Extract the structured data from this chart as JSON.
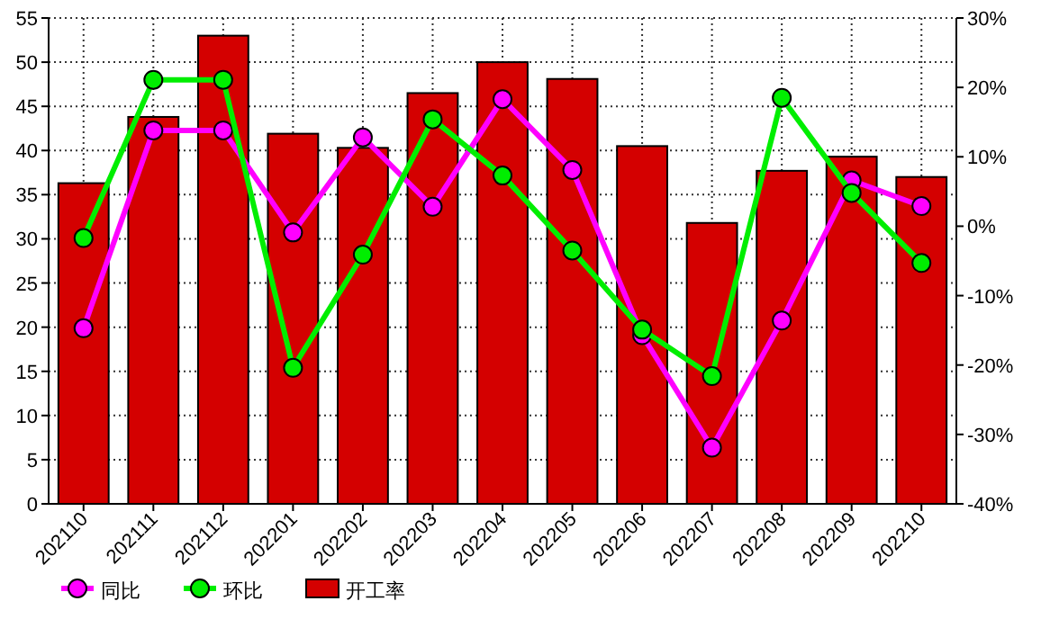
{
  "chart_data": {
    "type": "bar",
    "categories": [
      "202110",
      "202111",
      "202112",
      "202201",
      "202202",
      "202203",
      "202204",
      "202205",
      "202206",
      "202207",
      "202208",
      "202209",
      "202210"
    ],
    "series": [
      {
        "name": "同比",
        "type": "line",
        "axis": "y2",
        "color": "#ff00ff",
        "values": [
          -14.7,
          13.8,
          13.8,
          -0.9,
          12.8,
          2.8,
          18.3,
          8.1,
          -15.7,
          -31.9,
          -13.6,
          6.6,
          2.9
        ]
      },
      {
        "name": "环比",
        "type": "line",
        "axis": "y2",
        "color": "#00ee00",
        "values": [
          -1.7,
          21.1,
          21.1,
          -20.4,
          -4.1,
          15.4,
          7.3,
          -3.5,
          -14.9,
          -21.6,
          18.5,
          4.8,
          -5.3
        ]
      },
      {
        "name": "开工率",
        "color": "#d40000",
        "values": [
          36.3,
          43.8,
          53.0,
          41.9,
          40.3,
          46.5,
          50.0,
          48.1,
          40.5,
          31.8,
          37.7,
          39.3,
          37.0
        ]
      }
    ],
    "ylim": [
      0,
      55
    ],
    "yticks": [
      0,
      5,
      10,
      15,
      20,
      25,
      30,
      35,
      40,
      45,
      50,
      55
    ],
    "y2lim": [
      -40,
      30
    ],
    "y2ticks": [
      {
        "value": -40,
        "label": "-40%"
      },
      {
        "value": -30,
        "label": "-30%"
      },
      {
        "value": -20,
        "label": "-20%"
      },
      {
        "value": -10,
        "label": "-10%"
      },
      {
        "value": 0,
        "label": "0%"
      },
      {
        "value": 10,
        "label": "10%"
      },
      {
        "value": 20,
        "label": "20%"
      },
      {
        "value": 30,
        "label": "30%"
      }
    ],
    "grid": true,
    "legend": "bottom",
    "marker": "circle"
  }
}
